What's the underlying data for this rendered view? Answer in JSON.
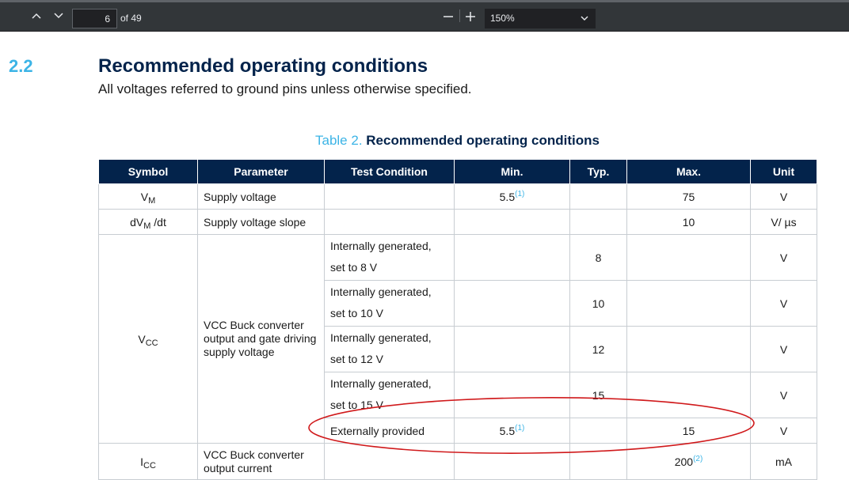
{
  "toolbar": {
    "current_page": "6",
    "page_total": "of 49",
    "zoom_value": "150%"
  },
  "section": {
    "number": "2.2",
    "title": "Recommended operating conditions",
    "subtitle": "All voltages referred to ground pins unless otherwise specified."
  },
  "table": {
    "caption_number": "Table 2.",
    "caption_title": "Recommended operating conditions",
    "headers": [
      "Symbol",
      "Parameter",
      "Test Condition",
      "Min.",
      "Typ.",
      "Max.",
      "Unit"
    ],
    "rows": {
      "vm": {
        "sym_main": "V",
        "sym_sub": "M",
        "param": "Supply voltage",
        "min": "5.5",
        "min_ref": "(1)",
        "max": "75",
        "unit": "V"
      },
      "dvm": {
        "sym_pre": "dV",
        "sym_sub": "M",
        "sym_post": " /dt",
        "param": "Supply voltage slope",
        "max": "10",
        "unit": "V/ µs"
      },
      "vcc": {
        "sym_main": "V",
        "sym_sub": "CC",
        "param": "VCC Buck converter output and gate driving supply voltage",
        "conditions": [
          {
            "line1": "Internally generated,",
            "line2": "set to 8 V",
            "typ": "8",
            "unit": "V"
          },
          {
            "line1": "Internally generated,",
            "line2": "set to 10 V",
            "typ": "10",
            "unit": "V"
          },
          {
            "line1": "Internally generated,",
            "line2": "set to 12 V",
            "typ": "12",
            "unit": "V"
          },
          {
            "line1": "Internally generated,",
            "line2": "set to 15 V",
            "typ": "15",
            "unit": "V"
          }
        ],
        "ext": {
          "cond": "Externally provided",
          "min": "5.5",
          "min_ref": "(1)",
          "max": "15",
          "unit": "V"
        }
      },
      "icc": {
        "sym_main": "I",
        "sym_sub": "CC",
        "param_line1": "VCC Buck converter",
        "param_line2": "output current",
        "max": "200",
        "max_ref": "(2)",
        "unit": "mA"
      }
    }
  },
  "colors": {
    "header_bg": "#03234b",
    "accent": "#3cb4e6",
    "annotation": "#d0191b"
  }
}
